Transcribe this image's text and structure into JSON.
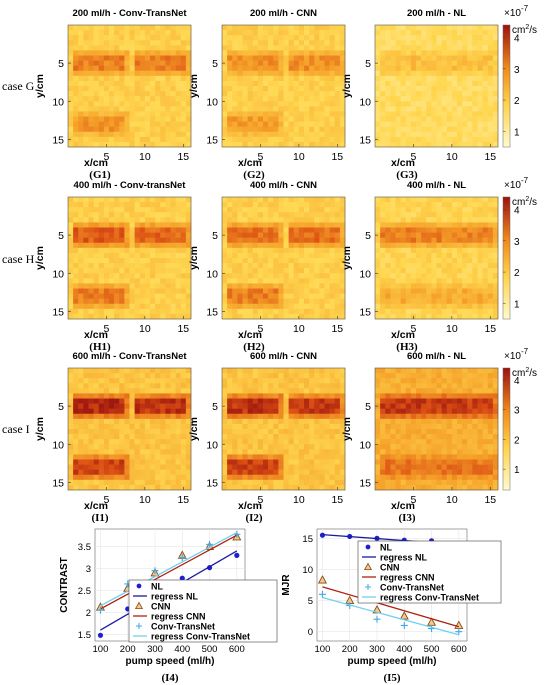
{
  "case_labels": [
    "case G",
    "case H",
    "case I"
  ],
  "colorbar_unit_multiplier": "×10",
  "colorbar_unit_exponent": "-7",
  "colorbar_unit": "cm",
  "colorbar_unit_sup": "2",
  "colorbar_unit_tail": "/s",
  "colors": {
    "heatmap_low": "#fff1a8",
    "heatmap_mid": "#f0a020",
    "heatmap_high": "#b81818",
    "nl_series": "#1f1fd0",
    "regress_nl": "#1a1aa0",
    "cnn_edge": "#8a4a10",
    "cnn_fill": "#f2c98f",
    "regress_cnn": "#b02010",
    "conv_transnet": "#40a8e8",
    "regress_conv": "#70d0f0"
  },
  "chart_data": [
    {
      "type": "heatmap",
      "id": "G1",
      "title": "200 ml/h - Conv-TransNet",
      "xlabel": "x/cm",
      "ylabel": "y/cm",
      "panel_label": "(G1)",
      "xticks": [
        5,
        10,
        15
      ],
      "yticks": [
        5,
        10,
        15
      ],
      "xlim": [
        0,
        16
      ],
      "ylim": [
        0,
        16
      ],
      "blobs": [
        {
          "x": [
            1,
            7.5
          ],
          "y": [
            4.5,
            5.5
          ],
          "intensity": 3.0
        },
        {
          "x": [
            9,
            15.5
          ],
          "y": [
            4.5,
            5.5
          ],
          "intensity": 3.0
        },
        {
          "x": [
            1,
            7.5
          ],
          "y": [
            12.5,
            13.5
          ],
          "intensity": 2.7
        }
      ],
      "background": 1.8
    },
    {
      "type": "heatmap",
      "id": "G2",
      "title": "200 ml/h - CNN",
      "xlabel": "x/cm",
      "ylabel": "y/cm",
      "panel_label": "(G2)",
      "xticks": [
        5,
        10,
        15
      ],
      "yticks": [
        5,
        10,
        15
      ],
      "xlim": [
        0,
        16
      ],
      "ylim": [
        0,
        16
      ],
      "blobs": [
        {
          "x": [
            1,
            7.5
          ],
          "y": [
            4.5,
            5.5
          ],
          "intensity": 2.8
        },
        {
          "x": [
            9,
            15.5
          ],
          "y": [
            4.5,
            5.5
          ],
          "intensity": 2.8
        },
        {
          "x": [
            1,
            7.5
          ],
          "y": [
            12.5,
            13.5
          ],
          "intensity": 2.6
        }
      ],
      "background": 1.8
    },
    {
      "type": "heatmap",
      "id": "G3",
      "title": "200 ml/h - NL",
      "xlabel": "x/cm",
      "ylabel": "y/cm",
      "panel_label": "(G3)",
      "xticks": [
        5,
        10,
        15
      ],
      "yticks": [
        5,
        10,
        15
      ],
      "xlim": [
        0,
        16
      ],
      "ylim": [
        0,
        16
      ],
      "blobs": [
        {
          "x": [
            1,
            15.5
          ],
          "y": [
            4.5,
            5.5
          ],
          "intensity": 2.1
        }
      ],
      "background": 1.5,
      "colorbar": {
        "ticks": [
          1,
          2,
          3,
          4
        ],
        "range": [
          0.5,
          4.4
        ]
      }
    },
    {
      "type": "heatmap",
      "id": "H1",
      "title": "400 ml/h - Conv-transNet",
      "xlabel": "x/cm",
      "ylabel": "y/cm",
      "panel_label": "(H1)",
      "xticks": [
        5,
        10,
        15
      ],
      "yticks": [
        5,
        10,
        15
      ],
      "xlim": [
        0,
        16
      ],
      "ylim": [
        0,
        16
      ],
      "blobs": [
        {
          "x": [
            1,
            7.5
          ],
          "y": [
            4.5,
            5.5
          ],
          "intensity": 3.4
        },
        {
          "x": [
            9,
            15.5
          ],
          "y": [
            4.5,
            5.5
          ],
          "intensity": 3.3
        },
        {
          "x": [
            1,
            7.5
          ],
          "y": [
            12.5,
            13.5
          ],
          "intensity": 3.0
        }
      ],
      "background": 1.8
    },
    {
      "type": "heatmap",
      "id": "H2",
      "title": "400 ml/h - CNN",
      "xlabel": "x/cm",
      "ylabel": "y/cm",
      "panel_label": "(H2)",
      "xticks": [
        5,
        10,
        15
      ],
      "yticks": [
        5,
        10,
        15
      ],
      "xlim": [
        0,
        16
      ],
      "ylim": [
        0,
        16
      ],
      "blobs": [
        {
          "x": [
            1,
            7.5
          ],
          "y": [
            4.5,
            5.5
          ],
          "intensity": 3.2
        },
        {
          "x": [
            9,
            15.5
          ],
          "y": [
            4.5,
            5.5
          ],
          "intensity": 3.2
        },
        {
          "x": [
            1,
            7.5
          ],
          "y": [
            12.5,
            13.5
          ],
          "intensity": 3.0
        }
      ],
      "background": 1.8
    },
    {
      "type": "heatmap",
      "id": "H3",
      "title": "400 ml/h - NL",
      "xlabel": "x/cm",
      "ylabel": "y/cm",
      "panel_label": "(H3)",
      "xticks": [
        5,
        10,
        15
      ],
      "yticks": [
        5,
        10,
        15
      ],
      "xlim": [
        0,
        16
      ],
      "ylim": [
        0,
        16
      ],
      "blobs": [
        {
          "x": [
            1,
            15.5
          ],
          "y": [
            4.5,
            5.5
          ],
          "intensity": 3.0
        },
        {
          "x": [
            1,
            15.5
          ],
          "y": [
            12.5,
            13.5
          ],
          "intensity": 2.4
        }
      ],
      "background": 1.7,
      "colorbar": {
        "ticks": [
          1,
          2,
          3,
          4
        ],
        "range": [
          0.5,
          4.4
        ]
      }
    },
    {
      "type": "heatmap",
      "id": "I1",
      "title": "600 ml/h - Conv-TransNet",
      "xlabel": "x/cm",
      "ylabel": "y/cm",
      "panel_label": "(I1)",
      "xticks": [
        5,
        10,
        15
      ],
      "yticks": [
        5,
        10,
        15
      ],
      "xlim": [
        0,
        16
      ],
      "ylim": [
        0,
        16
      ],
      "blobs": [
        {
          "x": [
            1,
            7.5
          ],
          "y": [
            4.5,
            5.5
          ],
          "intensity": 4.0
        },
        {
          "x": [
            9,
            15.5
          ],
          "y": [
            4.5,
            5.5
          ],
          "intensity": 3.9
        },
        {
          "x": [
            1,
            7.5
          ],
          "y": [
            12.5,
            13.5
          ],
          "intensity": 3.7
        }
      ],
      "background": 2.0
    },
    {
      "type": "heatmap",
      "id": "I2",
      "title": "600 ml/h - CNN",
      "xlabel": "x/cm",
      "ylabel": "y/cm",
      "panel_label": "(I2)",
      "xticks": [
        5,
        10,
        15
      ],
      "yticks": [
        5,
        10,
        15
      ],
      "xlim": [
        0,
        16
      ],
      "ylim": [
        0,
        16
      ],
      "blobs": [
        {
          "x": [
            1,
            7.5
          ],
          "y": [
            4.5,
            5.5
          ],
          "intensity": 3.9
        },
        {
          "x": [
            9,
            15.5
          ],
          "y": [
            4.5,
            5.5
          ],
          "intensity": 3.8
        },
        {
          "x": [
            1,
            7.5
          ],
          "y": [
            12.5,
            13.5
          ],
          "intensity": 3.7
        }
      ],
      "background": 2.0
    },
    {
      "type": "heatmap",
      "id": "I3",
      "title": "600 ml/h - NL",
      "xlabel": "x/cm",
      "ylabel": "y/cm",
      "panel_label": "(I3)",
      "xticks": [
        5,
        10,
        15
      ],
      "yticks": [
        5,
        10,
        15
      ],
      "xlim": [
        0,
        16
      ],
      "ylim": [
        0,
        16
      ],
      "blobs": [
        {
          "x": [
            1,
            15.5
          ],
          "y": [
            4.5,
            5.5
          ],
          "intensity": 3.8
        },
        {
          "x": [
            1,
            15.5
          ],
          "y": [
            12.5,
            13.5
          ],
          "intensity": 3.1
        }
      ],
      "background": 2.4,
      "colorbar": {
        "ticks": [
          1,
          2,
          3,
          4
        ],
        "range": [
          0.3,
          4.4
        ]
      }
    },
    {
      "type": "scatter",
      "id": "I4",
      "panel_label": "(I4)",
      "xlabel": "pump speed (ml/h)",
      "ylabel": "CONTRAST",
      "xlim": [
        80,
        630
      ],
      "ylim": [
        1.35,
        3.9
      ],
      "xticks": [
        100,
        200,
        300,
        400,
        500,
        600
      ],
      "yticks": [
        1.5,
        2,
        2.5,
        3,
        3.5
      ],
      "grid": true,
      "legend": "bottom-right",
      "series": [
        {
          "name": "NL",
          "marker": "dot",
          "x": [
            100,
            200,
            300,
            400,
            500,
            600
          ],
          "y": [
            1.48,
            2.08,
            2.42,
            2.78,
            3.02,
            3.3
          ]
        },
        {
          "name": "regress NL",
          "line": true,
          "x": [
            100,
            600
          ],
          "y": [
            1.6,
            3.4
          ]
        },
        {
          "name": "CNN",
          "marker": "triangle",
          "x": [
            100,
            200,
            300,
            400,
            500,
            600
          ],
          "y": [
            2.12,
            2.55,
            2.9,
            3.3,
            3.5,
            3.72
          ]
        },
        {
          "name": "regress CNN",
          "line": true,
          "x": [
            100,
            600
          ],
          "y": [
            2.08,
            3.76
          ]
        },
        {
          "name": "Conv-TransNet",
          "marker": "plus",
          "x": [
            100,
            200,
            300,
            400,
            500,
            600
          ],
          "y": [
            2.05,
            2.65,
            2.95,
            3.25,
            3.55,
            3.78
          ]
        },
        {
          "name": "regress Conv-TransNet",
          "line": true,
          "x": [
            100,
            600
          ],
          "y": [
            2.15,
            3.82
          ]
        }
      ]
    },
    {
      "type": "scatter",
      "id": "I5",
      "panel_label": "(I5)",
      "xlabel": "pump speed (ml/h)",
      "ylabel": "MJR",
      "xlim": [
        80,
        630
      ],
      "ylim": [
        -1.5,
        16.5
      ],
      "xticks": [
        100,
        200,
        300,
        400,
        500,
        600
      ],
      "yticks": [
        0,
        5,
        10,
        15
      ],
      "grid": true,
      "legend": "center-right",
      "series": [
        {
          "name": "NL",
          "marker": "dot",
          "x": [
            100,
            200,
            300,
            400,
            500,
            600
          ],
          "y": [
            15.5,
            15.3,
            15.0,
            14.7,
            14.6,
            14.1
          ]
        },
        {
          "name": "regress NL",
          "line": true,
          "x": [
            100,
            600
          ],
          "y": [
            15.6,
            14.0
          ]
        },
        {
          "name": "CNN",
          "marker": "triangle",
          "x": [
            100,
            200,
            300,
            400,
            500,
            600
          ],
          "y": [
            8.3,
            5.0,
            3.5,
            2.5,
            1.5,
            1.0
          ]
        },
        {
          "name": "regress CNN",
          "line": true,
          "x": [
            100,
            600
          ],
          "y": [
            7.2,
            0.8
          ]
        },
        {
          "name": "Conv-TransNet",
          "marker": "plus",
          "x": [
            100,
            200,
            300,
            400,
            500,
            600
          ],
          "y": [
            6.0,
            4.2,
            2.0,
            1.0,
            0.5,
            0.0
          ]
        },
        {
          "name": "regress Conv-TransNet",
          "line": true,
          "x": [
            100,
            600
          ],
          "y": [
            5.5,
            -0.5
          ]
        }
      ]
    }
  ]
}
